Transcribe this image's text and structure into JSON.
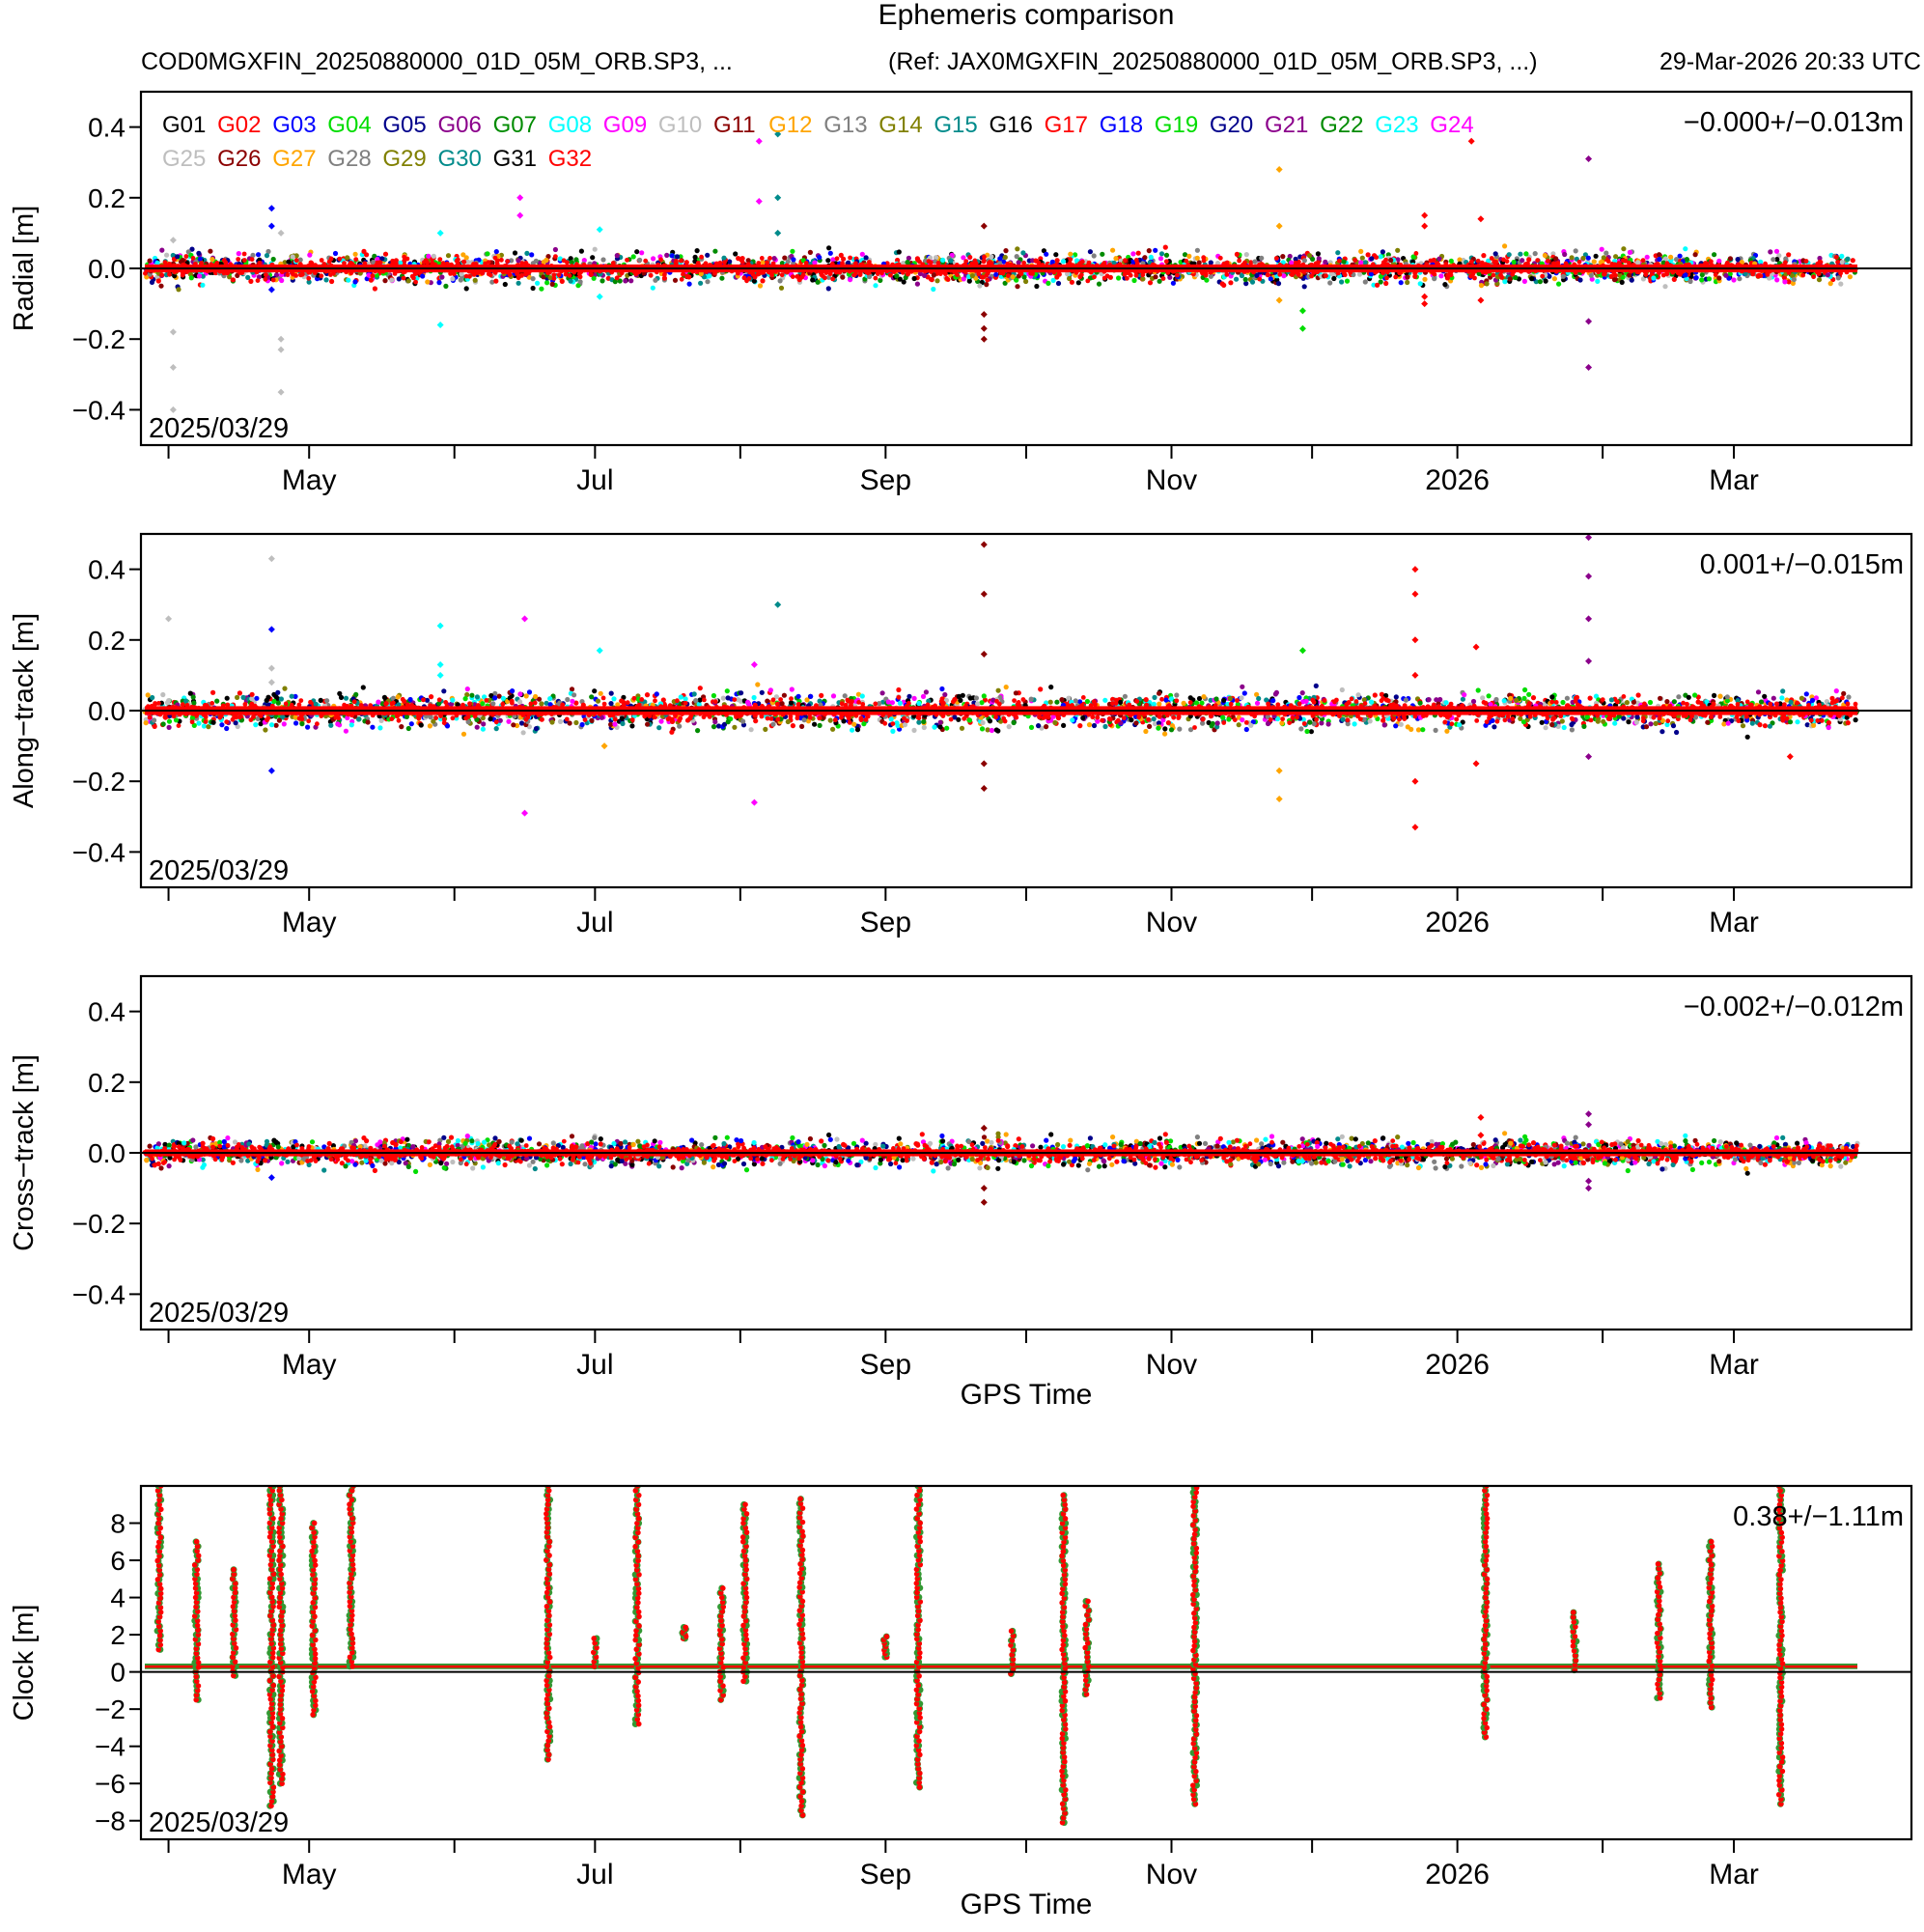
{
  "title": "Ephemeris comparison",
  "header": {
    "left": "COD0MGXFIN_20250880000_01D_05M_ORB.SP3, ...",
    "ref": "(Ref: JAX0MGXFIN_20250880000_01D_05M_ORB.SP3, ...)",
    "timestamp": "29-Mar-2026 20:33 UTC"
  },
  "colors": {
    "G01": "#000000",
    "G02": "#ff0000",
    "G03": "#0000ff",
    "G04": "#00dd00",
    "G05": "#00008b",
    "G06": "#8b008b",
    "G07": "#008b00",
    "G08": "#00ffff",
    "G09": "#ff00ff",
    "G10": "#bebebe",
    "G11": "#8b0000",
    "G12": "#ffa500",
    "G13": "#808080",
    "G14": "#808000",
    "G15": "#008b8b",
    "G16": "#000000",
    "G17": "#ff0000",
    "G18": "#0000ff",
    "G19": "#00dd00",
    "G20": "#00008b",
    "G21": "#8b008b",
    "G22": "#008b00",
    "G23": "#00ffff",
    "G24": "#ff00ff",
    "G25": "#bebebe",
    "G26": "#8b0000",
    "G27": "#ffa500",
    "G28": "#808080",
    "G29": "#808000",
    "G30": "#008b8b",
    "G31": "#000000",
    "G32": "#ff0000"
  },
  "chart_data": [
    {
      "type": "scatter",
      "id": "radial",
      "ylabel": "Radial [m]",
      "ylim": [
        -0.5,
        0.5
      ],
      "yticks": [
        -0.4,
        -0.2,
        0.0,
        0.2,
        0.4
      ],
      "ytick_labels": [
        "−0.4",
        "−0.2",
        "0.0",
        "0.2",
        "0.4"
      ],
      "xlim": [
        "2025-03-29",
        "2026-03-29"
      ],
      "xtick_labels": [
        "May",
        "Jul",
        "Sep",
        "Nov",
        "2026",
        "Mar"
      ],
      "start_label": "2025/03/29",
      "stats": "−0.000+/−0.013m",
      "legend": [
        "G01",
        "G02",
        "G03",
        "G04",
        "G05",
        "G06",
        "G07",
        "G08",
        "G09",
        "G10",
        "G11",
        "G12",
        "G13",
        "G14",
        "G15",
        "G16",
        "G17",
        "G18",
        "G19",
        "G20",
        "G21",
        "G22",
        "G23",
        "G24",
        "G25",
        "G26",
        "G27",
        "G28",
        "G29",
        "G30",
        "G31",
        "G32"
      ],
      "band": {
        "center": 0.0,
        "spread": 0.04
      },
      "outliers": [
        {
          "sat": "G10",
          "date": "2025-04-02",
          "values": [
            -0.28,
            -0.18,
            0.08,
            -0.4
          ]
        },
        {
          "sat": "G03",
          "date": "2025-04-23",
          "values": [
            0.17,
            0.12,
            -0.06
          ]
        },
        {
          "sat": "G10",
          "date": "2025-04-25",
          "values": [
            -0.2,
            -0.35,
            0.1,
            -0.23
          ]
        },
        {
          "sat": "G08",
          "date": "2025-05-29",
          "values": [
            0.1,
            -0.16
          ]
        },
        {
          "sat": "G09",
          "date": "2025-06-15",
          "values": [
            0.2,
            0.15
          ]
        },
        {
          "sat": "G08",
          "date": "2025-07-02",
          "values": [
            0.11,
            -0.08
          ]
        },
        {
          "sat": "G09",
          "date": "2025-08-05",
          "values": [
            0.36,
            0.19
          ]
        },
        {
          "sat": "G15",
          "date": "2025-08-09",
          "values": [
            0.38,
            0.2,
            0.1
          ]
        },
        {
          "sat": "G11",
          "date": "2025-09-22",
          "values": [
            0.12,
            -0.2,
            -0.17,
            -0.13
          ]
        },
        {
          "sat": "G12",
          "date": "2025-11-24",
          "values": [
            0.28,
            0.12,
            -0.09
          ]
        },
        {
          "sat": "G04",
          "date": "2025-11-29",
          "values": [
            -0.17,
            -0.12
          ]
        },
        {
          "sat": "G02",
          "date": "2025-12-25",
          "values": [
            0.15,
            0.12,
            -0.08,
            -0.1
          ]
        },
        {
          "sat": "G02",
          "date": "2026-01-06",
          "values": [
            0.14,
            -0.09
          ]
        },
        {
          "sat": "G21",
          "date": "2026-01-29",
          "values": [
            0.31,
            -0.28,
            -0.15
          ]
        },
        {
          "sat": "G02",
          "date": "2026-01-04",
          "values": [
            0.36
          ]
        }
      ]
    },
    {
      "type": "scatter",
      "id": "along",
      "ylabel": "Along−track [m]",
      "ylim": [
        -0.5,
        0.5
      ],
      "yticks": [
        -0.4,
        -0.2,
        0.0,
        0.2,
        0.4
      ],
      "ytick_labels": [
        "−0.4",
        "−0.2",
        "0.0",
        "0.2",
        "0.4"
      ],
      "xlim": [
        "2025-03-29",
        "2026-03-29"
      ],
      "xtick_labels": [
        "May",
        "Jul",
        "Sep",
        "Nov",
        "2026",
        "Mar"
      ],
      "start_label": "2025/03/29",
      "stats": "0.001+/−0.015m",
      "band": {
        "center": 0.0,
        "spread": 0.045
      },
      "outliers": [
        {
          "sat": "G10",
          "date": "2025-04-01",
          "values": [
            0.26
          ]
        },
        {
          "sat": "G10",
          "date": "2025-04-23",
          "values": [
            0.43,
            0.12,
            0.08
          ]
        },
        {
          "sat": "G03",
          "date": "2025-04-23",
          "values": [
            0.23,
            -0.17
          ]
        },
        {
          "sat": "G08",
          "date": "2025-05-29",
          "values": [
            0.24,
            0.13,
            0.1
          ]
        },
        {
          "sat": "G09",
          "date": "2025-06-16",
          "values": [
            0.26,
            -0.29
          ]
        },
        {
          "sat": "G08",
          "date": "2025-07-02",
          "values": [
            0.17
          ]
        },
        {
          "sat": "G12",
          "date": "2025-07-03",
          "values": [
            -0.1
          ]
        },
        {
          "sat": "G09",
          "date": "2025-08-04",
          "values": [
            0.13,
            -0.26
          ]
        },
        {
          "sat": "G15",
          "date": "2025-08-09",
          "values": [
            0.3
          ]
        },
        {
          "sat": "G11",
          "date": "2025-09-22",
          "values": [
            0.47,
            0.33,
            0.16,
            -0.15,
            -0.22
          ]
        },
        {
          "sat": "G12",
          "date": "2025-11-24",
          "values": [
            -0.17,
            -0.25
          ]
        },
        {
          "sat": "G04",
          "date": "2025-11-29",
          "values": [
            0.17
          ]
        },
        {
          "sat": "G02",
          "date": "2025-12-23",
          "values": [
            0.4,
            0.33,
            0.2,
            0.1,
            -0.2,
            -0.33
          ]
        },
        {
          "sat": "G02",
          "date": "2026-01-05",
          "values": [
            0.18,
            -0.15
          ]
        },
        {
          "sat": "G21",
          "date": "2026-01-29",
          "values": [
            0.49,
            0.38,
            0.26,
            0.14,
            -0.13
          ]
        },
        {
          "sat": "G02",
          "date": "2026-03-13",
          "values": [
            -0.13
          ]
        }
      ]
    },
    {
      "type": "scatter",
      "id": "cross",
      "ylabel": "Cross−track [m]",
      "ylim": [
        -0.5,
        0.5
      ],
      "yticks": [
        -0.4,
        -0.2,
        0.0,
        0.2,
        0.4
      ],
      "ytick_labels": [
        "−0.4",
        "−0.2",
        "0.0",
        "0.2",
        "0.4"
      ],
      "xlim": [
        "2025-03-29",
        "2026-03-29"
      ],
      "xtick_labels": [
        "May",
        "Jul",
        "Sep",
        "Nov",
        "2026",
        "Mar"
      ],
      "start_label": "2025/03/29",
      "stats": "−0.002+/−0.012m",
      "xlabel": "GPS Time",
      "band": {
        "center": 0.0,
        "spread": 0.035
      },
      "outliers": [
        {
          "sat": "G03",
          "date": "2025-04-23",
          "values": [
            -0.07
          ]
        },
        {
          "sat": "G11",
          "date": "2025-09-22",
          "values": [
            0.07,
            -0.1,
            -0.14
          ]
        },
        {
          "sat": "G02",
          "date": "2026-01-06",
          "values": [
            0.1,
            0.05
          ]
        },
        {
          "sat": "G21",
          "date": "2026-01-29",
          "values": [
            0.11,
            0.08,
            -0.08,
            -0.1
          ]
        }
      ]
    },
    {
      "type": "scatter",
      "id": "clock",
      "ylabel": "Clock [m]",
      "ylim": [
        -9,
        10
      ],
      "yticks": [
        -8,
        -6,
        -4,
        -2,
        0,
        2,
        4,
        6,
        8
      ],
      "ytick_labels": [
        "−8",
        "−6",
        "−4",
        "−2",
        "0",
        "2",
        "4",
        "6",
        "8"
      ],
      "xlim": [
        "2025-03-29",
        "2026-03-29"
      ],
      "xtick_labels": [
        "May",
        "Jul",
        "Sep",
        "Nov",
        "2026",
        "Mar"
      ],
      "start_label": "2025/03/29",
      "stats": "0.38+/−1.11m",
      "xlabel": "GPS Time",
      "baseline": 0.3,
      "spikes": [
        {
          "date": "2025-03-30",
          "min": 1.2,
          "max": 10
        },
        {
          "date": "2025-04-07",
          "min": -1.5,
          "max": 7
        },
        {
          "date": "2025-04-15",
          "min": -0.2,
          "max": 5.5
        },
        {
          "date": "2025-04-23",
          "min": -7.2,
          "max": 10
        },
        {
          "date": "2025-04-25",
          "min": -6,
          "max": 10
        },
        {
          "date": "2025-05-02",
          "min": -2.3,
          "max": 8
        },
        {
          "date": "2025-05-10",
          "min": 0.3,
          "max": 10
        },
        {
          "date": "2025-06-21",
          "min": -4.7,
          "max": 10
        },
        {
          "date": "2025-07-01",
          "min": 0.3,
          "max": 1.8
        },
        {
          "date": "2025-07-10",
          "min": -2.8,
          "max": 10
        },
        {
          "date": "2025-07-20",
          "min": 1.8,
          "max": 2.4
        },
        {
          "date": "2025-07-28",
          "min": -1.5,
          "max": 4.5
        },
        {
          "date": "2025-08-02",
          "min": -0.5,
          "max": 9
        },
        {
          "date": "2025-08-14",
          "min": -7.7,
          "max": 9.3
        },
        {
          "date": "2025-09-01",
          "min": 0.8,
          "max": 1.9
        },
        {
          "date": "2025-09-08",
          "min": -6.2,
          "max": 10
        },
        {
          "date": "2025-09-28",
          "min": -0.1,
          "max": 2.2
        },
        {
          "date": "2025-10-09",
          "min": -8.1,
          "max": 9.5
        },
        {
          "date": "2025-10-14",
          "min": -1.2,
          "max": 3.8
        },
        {
          "date": "2025-11-06",
          "min": -7.1,
          "max": 9.9
        },
        {
          "date": "2026-01-07",
          "min": -3.5,
          "max": 10
        },
        {
          "date": "2026-01-26",
          "min": 0.1,
          "max": 3.2
        },
        {
          "date": "2026-02-13",
          "min": -1.4,
          "max": 5.8
        },
        {
          "date": "2026-02-24",
          "min": -1.9,
          "max": 7
        },
        {
          "date": "2026-03-11",
          "min": -7.1,
          "max": 10
        }
      ]
    }
  ]
}
